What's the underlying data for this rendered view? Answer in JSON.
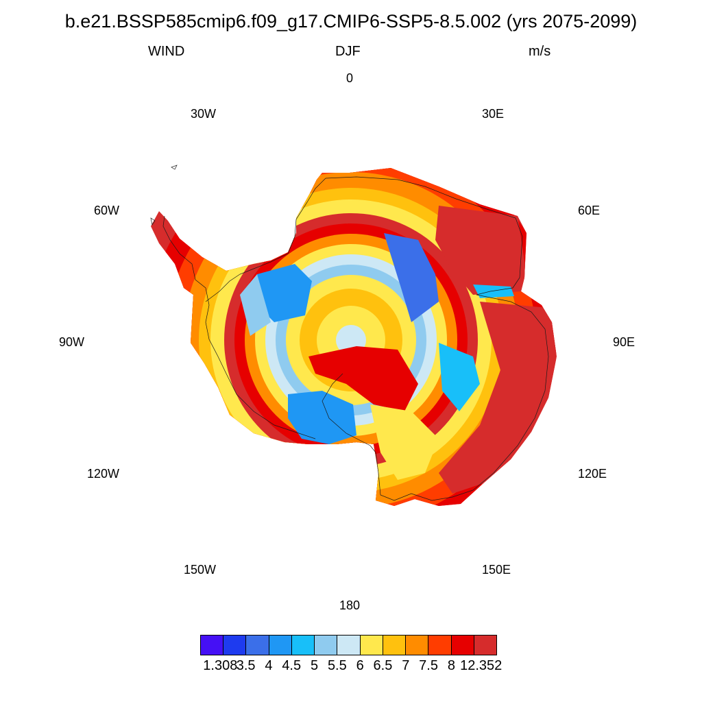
{
  "title": "b.e21.BSSP585cmip6.f09_g17.CMIP6-SSP5-8.5.002 (yrs 2075-2099)",
  "variable": "WIND",
  "season": "DJF",
  "units": "m/s",
  "longitude_labels": {
    "lon_0": "0",
    "lon_30e": "30E",
    "lon_60e": "60E",
    "lon_90e": "90E",
    "lon_120e": "120E",
    "lon_150e": "150E",
    "lon_180": "180",
    "lon_150w": "150W",
    "lon_120w": "120W",
    "lon_90w": "90W",
    "lon_60w": "60W",
    "lon_30w": "30W"
  },
  "colorbar": {
    "colors": [
      "#4510f5",
      "#1e3bef",
      "#3b6fe9",
      "#1f97f4",
      "#18bff9",
      "#8fcbef",
      "#cde8f5",
      "#ffe84d",
      "#ffc10e",
      "#ff8c00",
      "#ff3d00",
      "#e60000",
      "#d62c2c"
    ],
    "labels": [
      "1.308",
      "3.5",
      "4",
      "4.5",
      "5",
      "5.5",
      "6",
      "6.5",
      "7",
      "7.5",
      "8",
      "12.352"
    ]
  },
  "map": {
    "projection": "south polar stereographic",
    "extent": "Antarctic continent",
    "coastlines": true,
    "fill_style": "raster cells"
  }
}
